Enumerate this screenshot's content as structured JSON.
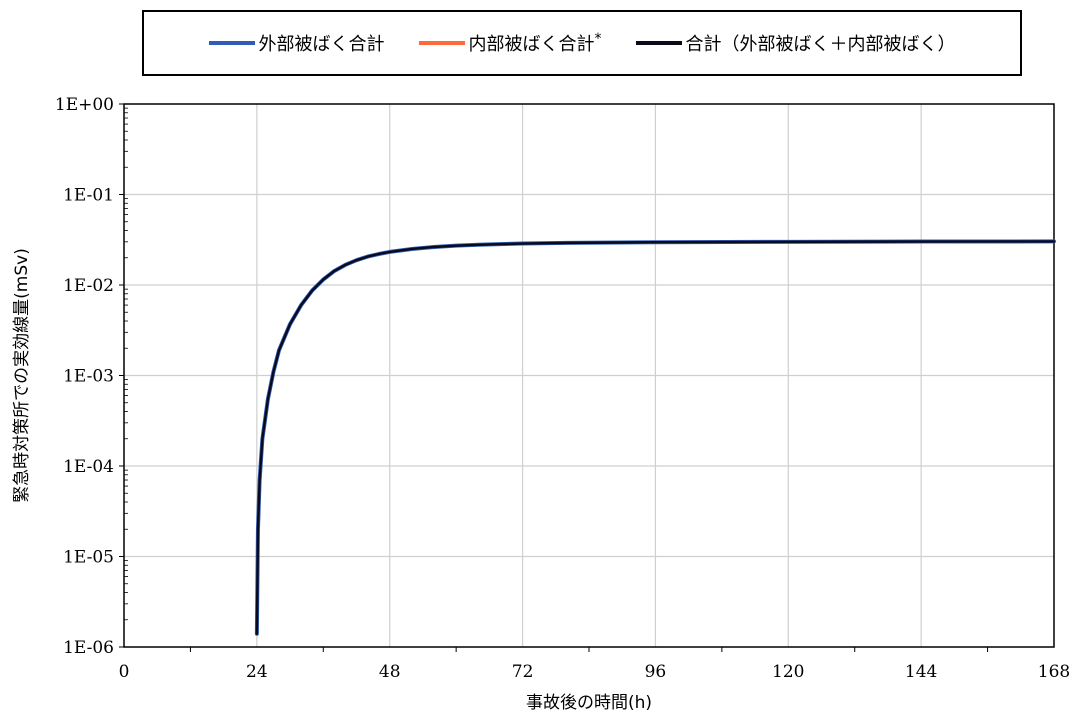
{
  "chart_data": {
    "type": "line",
    "title": "",
    "xlabel": "事故後の時間(h)",
    "ylabel": "緊急時対策所での実効線量(mSv)",
    "xlim": [
      0,
      168
    ],
    "ylim": [
      1e-06,
      1
    ],
    "y_scale": "log",
    "grid": true,
    "legend_position": "top",
    "x_ticks": [
      "0",
      "24",
      "48",
      "72",
      "96",
      "120",
      "144",
      "168"
    ],
    "x_tick_values": [
      0,
      24,
      48,
      72,
      96,
      120,
      144,
      168
    ],
    "y_ticks": [
      "1E+00",
      "1E-01",
      "1E-02",
      "1E-03",
      "1E-04",
      "1E-05",
      "1E-06"
    ],
    "y_tick_values": [
      1,
      0.1,
      0.01,
      0.001,
      0.0001,
      1e-05,
      1e-06
    ],
    "legend": [
      {
        "name": "外部被ばく合計",
        "color": "#2e5cb8",
        "suffix": ""
      },
      {
        "name": "内部被ばく合計",
        "color": "#ff6a3d",
        "suffix": "*"
      },
      {
        "name": "合計（外部被ばく＋内部被ばく）",
        "color": "#0a0a1a",
        "suffix": ""
      }
    ],
    "series": [
      {
        "name": "外部被ばく合計",
        "color": "#2e5cb8",
        "x": [
          24,
          24.2,
          24.5,
          25,
          26,
          27,
          28,
          30,
          32,
          34,
          36,
          38,
          40,
          42,
          44,
          46,
          48,
          52,
          56,
          60,
          64,
          68,
          72,
          80,
          96,
          120,
          144,
          168
        ],
        "y": [
          1.4e-06,
          2e-05,
          7e-05,
          0.0002,
          0.00055,
          0.0011,
          0.0019,
          0.0037,
          0.006,
          0.0087,
          0.0115,
          0.0143,
          0.0167,
          0.0188,
          0.0206,
          0.022,
          0.0232,
          0.025,
          0.0263,
          0.0272,
          0.0278,
          0.0283,
          0.0287,
          0.0292,
          0.0297,
          0.03,
          0.0302,
          0.0303
        ]
      },
      {
        "name": "合計（外部被ばく＋内部被ばく）",
        "color": "#0a0a1a",
        "x": [
          24,
          24.2,
          24.5,
          25,
          26,
          27,
          28,
          30,
          32,
          34,
          36,
          38,
          40,
          42,
          44,
          46,
          48,
          52,
          56,
          60,
          64,
          68,
          72,
          80,
          96,
          120,
          144,
          168
        ],
        "y": [
          1.4e-06,
          2e-05,
          7e-05,
          0.0002,
          0.00055,
          0.0011,
          0.0019,
          0.0037,
          0.006,
          0.0087,
          0.0115,
          0.0143,
          0.0167,
          0.0188,
          0.0206,
          0.022,
          0.0232,
          0.025,
          0.0263,
          0.0272,
          0.0278,
          0.0283,
          0.0287,
          0.0292,
          0.0297,
          0.03,
          0.0302,
          0.0303
        ]
      }
    ]
  }
}
